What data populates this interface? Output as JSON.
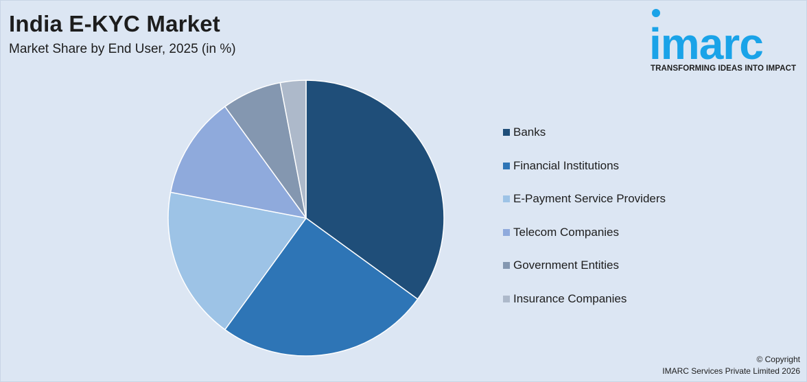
{
  "header": {
    "title": "India E-KYC Market",
    "subtitle": "Market Share by End User, 2025 (in %)"
  },
  "logo": {
    "word": "imarc",
    "tagline": "TRANSFORMING IDEAS INTO IMPACT",
    "color": "#1aa3e8"
  },
  "chart_data": {
    "type": "pie",
    "title": "India E-KYC Market",
    "subtitle": "Market Share by End User, 2025 (in %)",
    "legend_position": "right",
    "slices": [
      {
        "label": "Banks",
        "value": 35,
        "color": "#1f4e79"
      },
      {
        "label": "Financial Institutions",
        "value": 25,
        "color": "#2e75b6"
      },
      {
        "label": "E-Payment Service Providers",
        "value": 18,
        "color": "#9dc3e6"
      },
      {
        "label": "Telecom Companies",
        "value": 12,
        "color": "#8faadc"
      },
      {
        "label": "Government Entities",
        "value": 7,
        "color": "#8497b0"
      },
      {
        "label": "Insurance Companies",
        "value": 3,
        "color": "#adb9ca"
      }
    ]
  },
  "footer": {
    "copyright_line1": "© Copyright",
    "copyright_line2": "IMARC Services Private Limited 2026"
  }
}
